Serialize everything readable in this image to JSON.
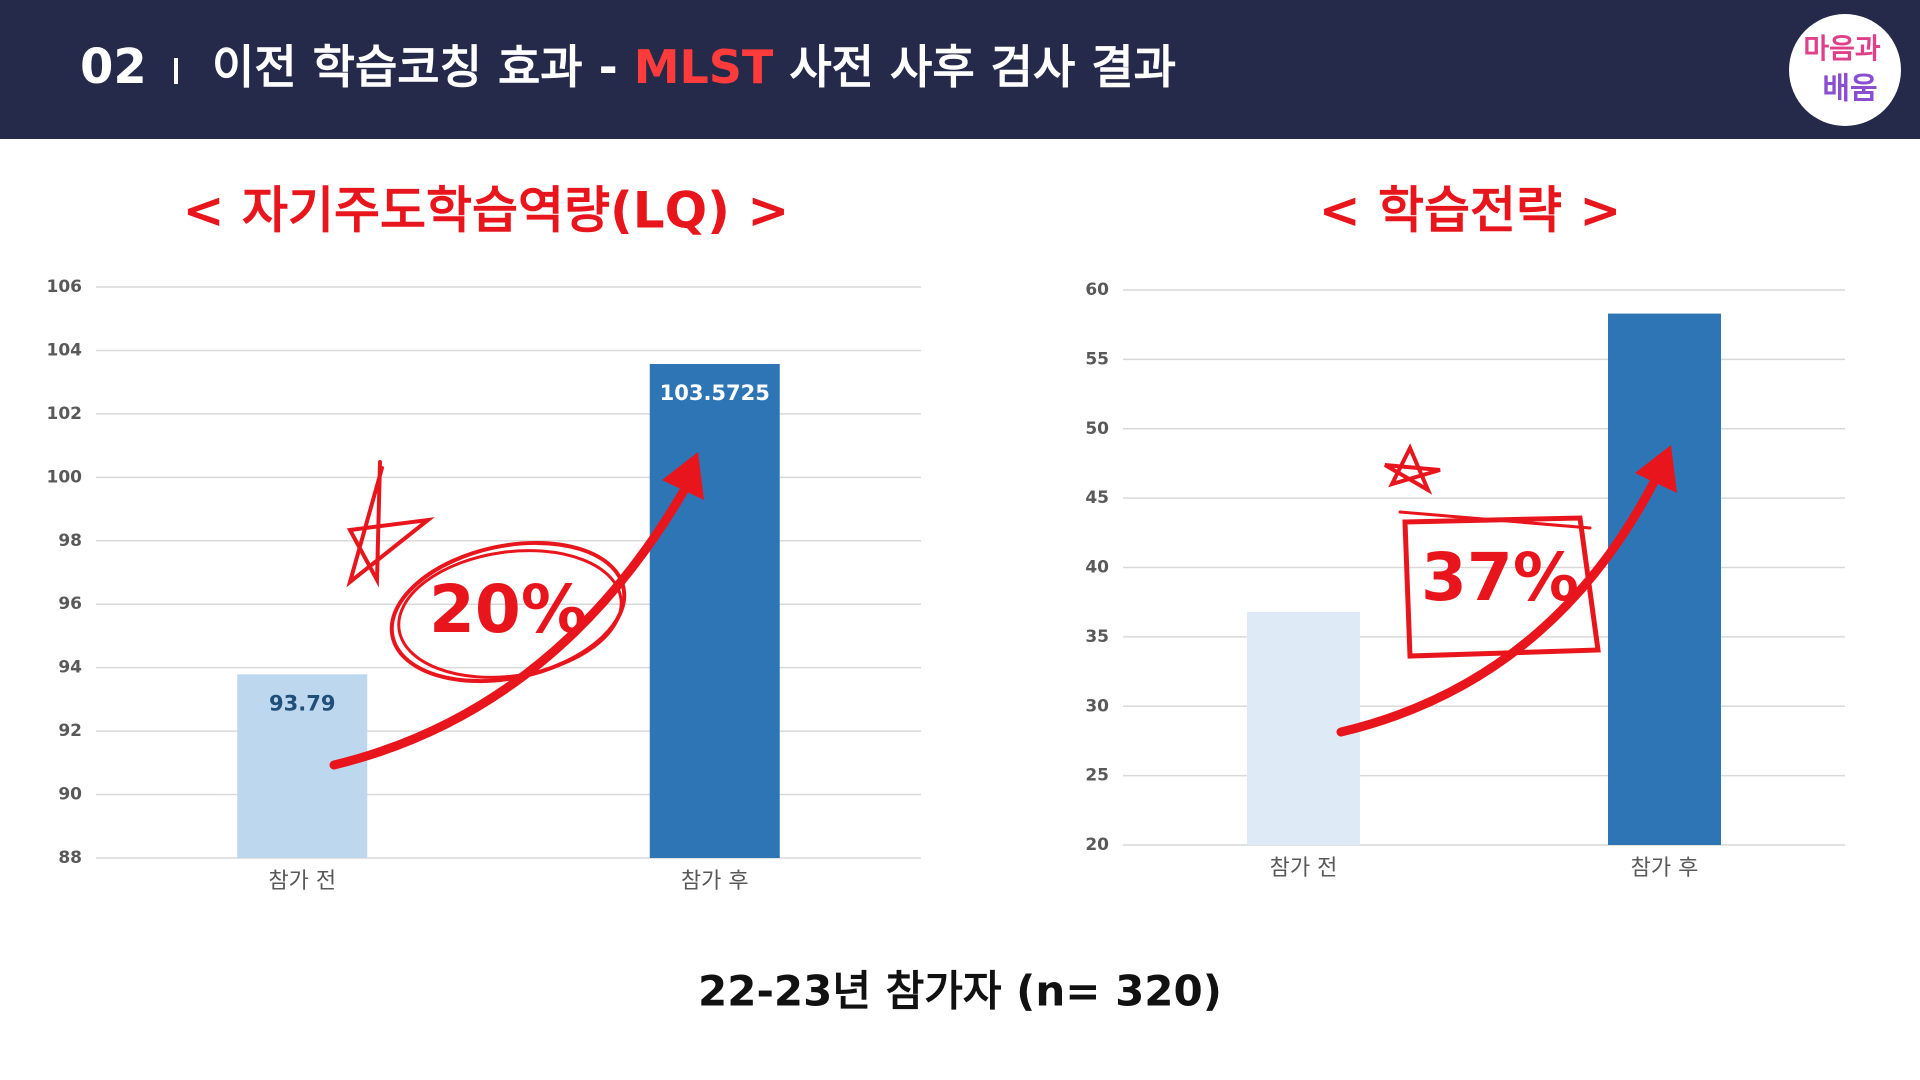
{
  "header": {
    "number": "02",
    "title_prefix": "이전 학습코칭 효과 -",
    "title_highlight": "MLST",
    "title_suffix": "사전 사후 검사 결과",
    "logo": [
      "마음과",
      "배움"
    ]
  },
  "chart_data": [
    {
      "type": "bar",
      "title": "< 자기주도학습역량(LQ) >",
      "categories": [
        "참가 전",
        "참가 후"
      ],
      "values": [
        93.79,
        103.5725
      ],
      "colors": [
        "#bdd7ee",
        "#2e75b6"
      ],
      "value_label_colors": [
        "#1f4e79",
        "#ffffff"
      ],
      "show_value_labels": true,
      "ylim": [
        88,
        106
      ],
      "yticks": [
        88,
        90,
        92,
        94,
        96,
        98,
        100,
        102,
        104,
        106
      ],
      "grid": true,
      "annotation": "20%"
    },
    {
      "type": "bar",
      "title": "< 학습전략 >",
      "categories": [
        "참가 전",
        "참가 후"
      ],
      "values": [
        36.8,
        58.3
      ],
      "colors": [
        "#deebf7",
        "#2e75b6"
      ],
      "show_value_labels": false,
      "ylim": [
        20,
        60
      ],
      "yticks": [
        20,
        25,
        30,
        35,
        40,
        45,
        50,
        55,
        60
      ],
      "grid": true,
      "annotation": "37%"
    }
  ],
  "footer": "22-23년 참가자 (n= 320)"
}
